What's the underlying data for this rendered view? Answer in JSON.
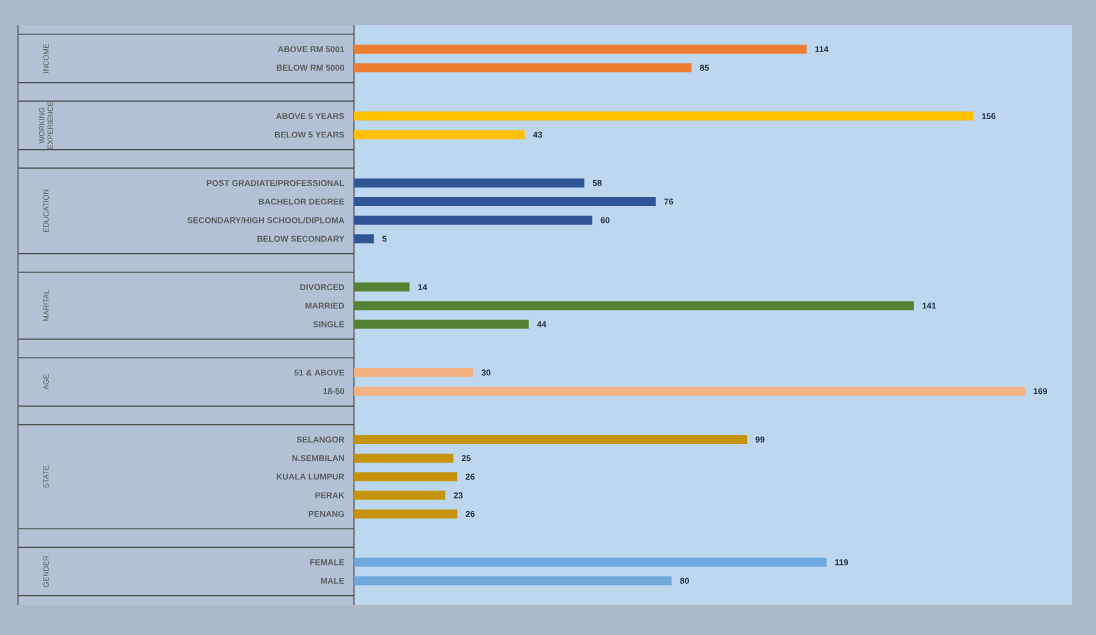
{
  "chart_data": {
    "type": "bar",
    "orientation": "horizontal",
    "data_labels": true,
    "categories": [
      "ABOVE RM 5001",
      "BELOW RM 5000",
      "ABOVE 5 YEARS",
      "BELOW 5 YEARS",
      "POST GRADIATE/PROFESSIONAL",
      "BACHELOR DEGREE",
      "SECONDARY/HIGH SCHOOL/DIPLOMA",
      "BELOW SECONDARY",
      "DIVORCED",
      "MARRIED",
      "SINGLE",
      "51 & ABOVE",
      "18-50",
      "SELANGOR",
      "N.SEMBILAN",
      "KUALA LUMPUR",
      "PERAK",
      "PENANG",
      "FEMALE",
      "MALE"
    ],
    "values": [
      114,
      85,
      156,
      43,
      58,
      76,
      60,
      5,
      14,
      141,
      44,
      30,
      169,
      99,
      25,
      26,
      23,
      26,
      119,
      80
    ],
    "colors": [
      "#ed7d31",
      "#ed7d31",
      "#ffc000",
      "#ffc000",
      "#2f5597",
      "#2f5597",
      "#2f5597",
      "#2f5597",
      "#548235",
      "#548235",
      "#548235",
      "#f4b183",
      "#f4b183",
      "#c5930a",
      "#c5930a",
      "#c5930a",
      "#c5930a",
      "#c5930a",
      "#6fa8dc",
      "#6fa8dc"
    ],
    "annotations": [
      "INCOME",
      "WORKING EXPERIENCE",
      "EDUCATION",
      "MARITAL",
      "AGE",
      "STATE",
      "GENDER"
    ]
  }
}
